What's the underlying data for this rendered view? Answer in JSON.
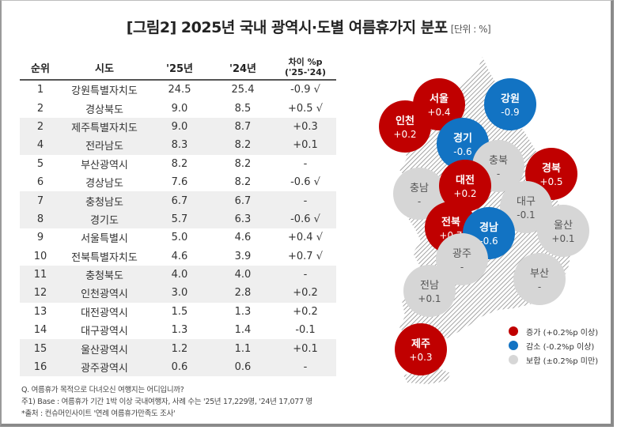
{
  "title": "[그림2] 2025년 국내 광역시·도별 여름휴가지 분포",
  "unit": "[단위 : %]",
  "colors": {
    "increase": "#c00000",
    "decrease": "#1273c3",
    "flat": "#d6d6d6",
    "diff_up_text": "#c00000",
    "diff_down_text": "#1a7ab8"
  },
  "table": {
    "headers": {
      "rank": "순위",
      "region": "시도",
      "y25": "'25년",
      "y24": "'24년",
      "diff_line1": "차이 %p",
      "diff_line2": "('25-'24)"
    },
    "rows": [
      {
        "rank": "1",
        "region": "강원특별자치도",
        "y25": "24.5",
        "y24": "25.4",
        "diff": "-0.9 √",
        "trend": "down"
      },
      {
        "rank": "2",
        "region": "경상북도",
        "y25": "9.0",
        "y24": "8.5",
        "diff": "+0.5 √",
        "trend": "up"
      },
      {
        "rank": "2",
        "region": "제주특별자치도",
        "y25": "9.0",
        "y24": "8.7",
        "diff": "+0.3",
        "trend": "none"
      },
      {
        "rank": "4",
        "region": "전라남도",
        "y25": "8.3",
        "y24": "8.2",
        "diff": "+0.1",
        "trend": "none"
      },
      {
        "rank": "5",
        "region": "부산광역시",
        "y25": "8.2",
        "y24": "8.2",
        "diff": "-",
        "trend": "none"
      },
      {
        "rank": "6",
        "region": "경상남도",
        "y25": "7.6",
        "y24": "8.2",
        "diff": "-0.6 √",
        "trend": "down"
      },
      {
        "rank": "7",
        "region": "충청남도",
        "y25": "6.7",
        "y24": "6.7",
        "diff": "-",
        "trend": "none"
      },
      {
        "rank": "8",
        "region": "경기도",
        "y25": "5.7",
        "y24": "6.3",
        "diff": "-0.6 √",
        "trend": "down"
      },
      {
        "rank": "9",
        "region": "서울특별시",
        "y25": "5.0",
        "y24": "4.6",
        "diff": "+0.4 √",
        "trend": "up"
      },
      {
        "rank": "10",
        "region": "전북특별자치도",
        "y25": "4.6",
        "y24": "3.9",
        "diff": "+0.7 √",
        "trend": "up"
      },
      {
        "rank": "11",
        "region": "충청북도",
        "y25": "4.0",
        "y24": "4.0",
        "diff": "-",
        "trend": "none"
      },
      {
        "rank": "12",
        "region": "인천광역시",
        "y25": "3.0",
        "y24": "2.8",
        "diff": "+0.2",
        "trend": "none"
      },
      {
        "rank": "13",
        "region": "대전광역시",
        "y25": "1.5",
        "y24": "1.3",
        "diff": "+0.2",
        "trend": "none"
      },
      {
        "rank": "14",
        "region": "대구광역시",
        "y25": "1.3",
        "y24": "1.4",
        "diff": "-0.1",
        "trend": "none"
      },
      {
        "rank": "15",
        "region": "울산광역시",
        "y25": "1.2",
        "y24": "1.1",
        "diff": "+0.1",
        "trend": "none"
      },
      {
        "rank": "16",
        "region": "광주광역시",
        "y25": "0.6",
        "y24": "0.6",
        "diff": "-",
        "trend": "none"
      }
    ]
  },
  "notes": [
    "Q. 여름휴가 목적으로 다녀오신 여행지는 어디입니까?",
    "주1) Base : 여름휴가 기간 1박 이상 국내여행자, 사례 수는 '25년 17,229명, '24년 17,077 명",
    "*출처 : 컨슈머인사이트 '연례 여름휴가만족도 조사'"
  ],
  "map": {
    "regions": [
      {
        "name": "서울",
        "value": "+0.4",
        "status": "increase"
      },
      {
        "name": "강원",
        "value": "-0.9",
        "status": "decrease"
      },
      {
        "name": "인천",
        "value": "+0.2",
        "status": "increase"
      },
      {
        "name": "경기",
        "value": "-0.6",
        "status": "decrease"
      },
      {
        "name": "충북",
        "value": "-",
        "status": "flat"
      },
      {
        "name": "경북",
        "value": "+0.5",
        "status": "increase"
      },
      {
        "name": "충남",
        "value": "-",
        "status": "flat"
      },
      {
        "name": "대전",
        "value": "+0.2",
        "status": "increase"
      },
      {
        "name": "대구",
        "value": "-0.1",
        "status": "flat"
      },
      {
        "name": "전북",
        "value": "+0.7",
        "status": "increase"
      },
      {
        "name": "경남",
        "value": "-0.6",
        "status": "decrease"
      },
      {
        "name": "울산",
        "value": "+0.1",
        "status": "flat"
      },
      {
        "name": "광주",
        "value": "-",
        "status": "flat"
      },
      {
        "name": "전남",
        "value": "+0.1",
        "status": "flat"
      },
      {
        "name": "부산",
        "value": "-",
        "status": "flat"
      },
      {
        "name": "제주",
        "value": "+0.3",
        "status": "increase"
      }
    ]
  },
  "legend": [
    {
      "key": "increase",
      "label": "증가 (+0.2%p 이상)"
    },
    {
      "key": "decrease",
      "label": "감소 (-0.2%p 이상)"
    },
    {
      "key": "flat",
      "label": "보합 (±0.2%p 미만)"
    }
  ],
  "chart_data": {
    "type": "table",
    "title": "[그림2] 2025년 국내 광역시·도별 여름휴가지 분포",
    "unit": "%",
    "columns": [
      "순위",
      "시도",
      "'25년",
      "'24년",
      "차이 %p ('25-'24)"
    ],
    "categories": [
      "강원특별자치도",
      "경상북도",
      "제주특별자치도",
      "전라남도",
      "부산광역시",
      "경상남도",
      "충청남도",
      "경기도",
      "서울특별시",
      "전북특별자치도",
      "충청북도",
      "인천광역시",
      "대전광역시",
      "대구광역시",
      "울산광역시",
      "광주광역시"
    ],
    "series": [
      {
        "name": "'25년",
        "values": [
          24.5,
          9.0,
          9.0,
          8.3,
          8.2,
          7.6,
          6.7,
          5.7,
          5.0,
          4.6,
          4.0,
          3.0,
          1.5,
          1.3,
          1.2,
          0.6
        ]
      },
      {
        "name": "'24년",
        "values": [
          25.4,
          8.5,
          8.7,
          8.2,
          8.2,
          8.2,
          6.7,
          6.3,
          4.6,
          3.9,
          4.0,
          2.8,
          1.3,
          1.4,
          1.1,
          0.6
        ]
      },
      {
        "name": "차이 %p",
        "values": [
          -0.9,
          0.5,
          0.3,
          0.1,
          0.0,
          -0.6,
          0.0,
          -0.6,
          0.4,
          0.7,
          0.0,
          0.2,
          0.2,
          -0.1,
          0.1,
          0.0
        ]
      }
    ],
    "legend": [
      "증가 (+0.2%p 이상)",
      "감소 (-0.2%p 이상)",
      "보합 (±0.2%p 미만)"
    ],
    "legend_position": "bottom-right"
  }
}
